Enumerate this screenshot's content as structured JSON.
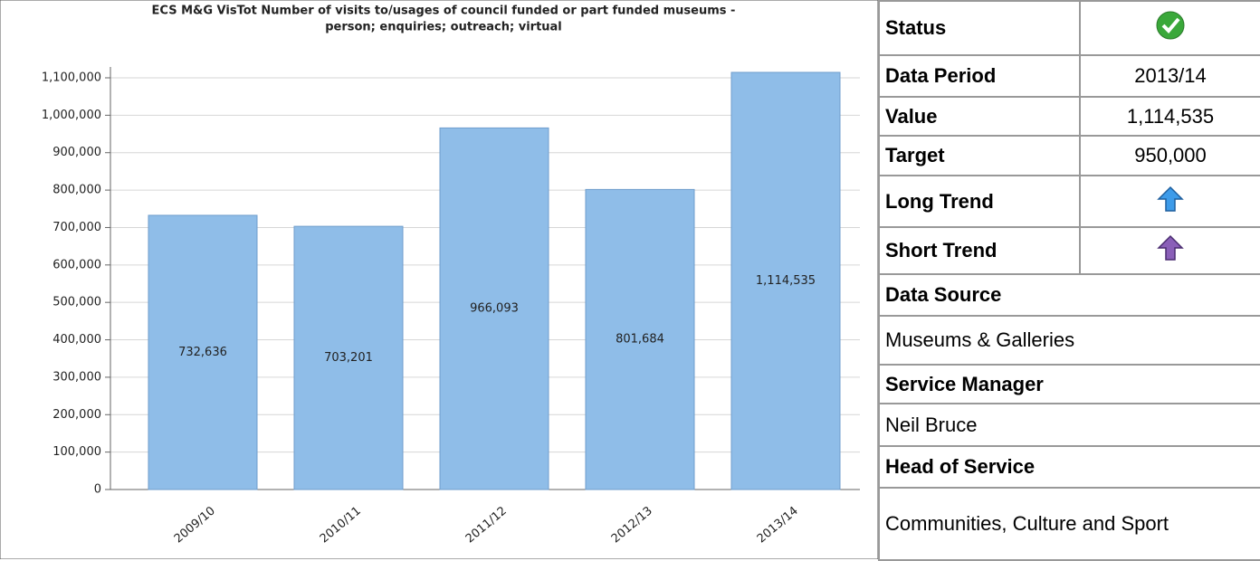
{
  "chart_data": {
    "type": "bar",
    "title": "ECS M&G VisTot Number of visits to/usages of council funded or part funded museums -",
    "subtitle": "person; enquiries; outreach; virtual",
    "categories": [
      "2009/10",
      "2010/11",
      "2011/12",
      "2012/13",
      "2013/14"
    ],
    "values": [
      732636,
      703201,
      966093,
      801684,
      1114535
    ],
    "value_labels": [
      "732,636",
      "703,201",
      "966,093",
      "801,684",
      "1,114,535"
    ],
    "color": "#8fbde8",
    "ylim": [
      0,
      1100000
    ],
    "yticks": [
      0,
      {
        "value": 100000,
        "label": "100,000"
      },
      {
        "value": 200000,
        "label": "200,000"
      },
      {
        "value": 300000,
        "label": "300,000"
      },
      {
        "value": 400000,
        "label": "400,000"
      },
      {
        "value": 500000,
        "label": "500,000"
      },
      {
        "value": 600000,
        "label": "600,000"
      },
      {
        "value": 700000,
        "label": "700,000"
      },
      {
        "value": 800000,
        "label": "800,000"
      },
      {
        "value": 900000,
        "label": "900,000"
      },
      {
        "value": 1000000,
        "label": "1,000,000"
      },
      {
        "value": 1100000,
        "label": "1,100,000"
      }
    ],
    "grid": true
  },
  "table": {
    "rows": [
      [
        "Status"
      ],
      [
        "Data Period",
        "2013/14"
      ],
      [
        "Value",
        "1,114,535"
      ],
      [
        "Target",
        "950,000"
      ],
      [
        "Long Trend"
      ],
      [
        "Short Trend"
      ],
      [
        "Data Source"
      ],
      [
        "Museums & Galleries"
      ],
      [
        "Service Manager"
      ],
      [
        "Neil Bruce"
      ],
      [
        "Head of Service"
      ],
      [
        "Communities, Culture and Sport"
      ]
    ]
  }
}
